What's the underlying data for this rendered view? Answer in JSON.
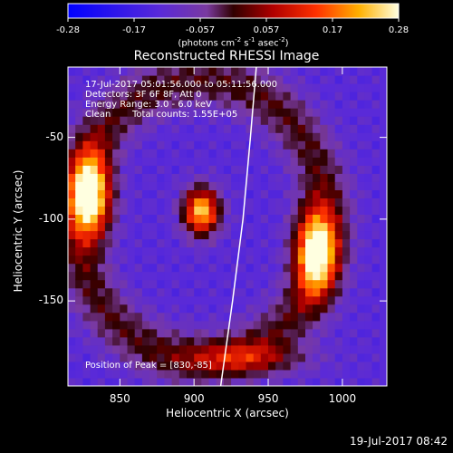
{
  "chart_data": {
    "type": "heatmap",
    "title": "Reconstructed RHESSI Image",
    "xlabel": "Heliocentric X (arcsec)",
    "ylabel": "Heliocentric Y (arcsec)",
    "xlim": [
      815,
      1030
    ],
    "ylim": [
      -202,
      -7
    ],
    "x_ticks": [
      850,
      900,
      950,
      1000
    ],
    "y_ticks": [
      -50,
      -100,
      -150
    ],
    "colorbar": {
      "ticks": [
        "-0.28",
        "-0.17",
        "-0.057",
        "0.057",
        "0.17",
        "0.28"
      ],
      "min": -0.28,
      "max": 0.28,
      "units_prefix": "(photons cm",
      "units_exp1": "-2",
      "units_mid1": " s",
      "units_exp2": "-1",
      "units_mid2": " asec",
      "units_exp3": "-2",
      "units_suffix": ")"
    },
    "sources": [
      {
        "x": 830,
        "y": -85,
        "peak": 0.28
      },
      {
        "x": 905,
        "y": -95,
        "peak": 0.24
      },
      {
        "x": 982,
        "y": -120,
        "peak": 0.26
      }
    ],
    "limb_curve": [
      [
        942,
        -7
      ],
      [
        938,
        -50
      ],
      [
        933,
        -100
      ],
      [
        926,
        -150
      ],
      [
        918,
        -202
      ]
    ],
    "annotations": {
      "time_range": "17-Jul-2017 05:01:56.000 to 05:11:56.000",
      "detectors": "Detectors: 3F 6F 8F, Att 0",
      "energy_range": "Energy Range: 3.0 - 6.0 keV",
      "method": "Clean",
      "total_counts": "Total counts: 1.55E+05",
      "peak_position": "Position of Peak = [830,-85]"
    }
  },
  "footer": {
    "timestamp": "19-Jul-2017 08:42"
  }
}
